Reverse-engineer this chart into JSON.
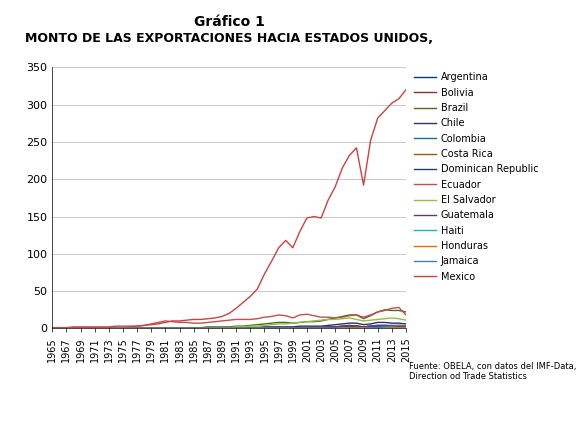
{
  "title1": "Gráfico 1",
  "title2": "MONTO DE LAS EXPORTACIONES HACIA ESTADOS UNIDOS,",
  "footnote": "Fuente: OBELA, con datos del IMF-Data,\nDirection od Trade Statistics",
  "years": [
    1965,
    1966,
    1967,
    1968,
    1969,
    1970,
    1971,
    1972,
    1973,
    1974,
    1975,
    1976,
    1977,
    1978,
    1979,
    1980,
    1981,
    1982,
    1983,
    1984,
    1985,
    1986,
    1987,
    1988,
    1989,
    1990,
    1991,
    1992,
    1993,
    1994,
    1995,
    1996,
    1997,
    1998,
    1999,
    2000,
    2001,
    2002,
    2003,
    2004,
    2005,
    2006,
    2007,
    2008,
    2009,
    2010,
    2011,
    2012,
    2013,
    2014,
    2015
  ],
  "series": {
    "Argentina": [
      0,
      0,
      0,
      0,
      0,
      0,
      0,
      0,
      0,
      0,
      0,
      0,
      0,
      0,
      0,
      0,
      0,
      0,
      0,
      0,
      0,
      0,
      0,
      0,
      0,
      0,
      0,
      1,
      1,
      1,
      1,
      1,
      1,
      1,
      1,
      1,
      1,
      1,
      1,
      2,
      2,
      3,
      4,
      3,
      1,
      2,
      3,
      3,
      3,
      3,
      3
    ],
    "Bolivia": [
      0,
      0,
      0,
      0,
      0,
      0,
      0,
      0,
      0,
      0,
      0,
      0,
      0,
      0,
      0,
      0,
      0,
      0,
      0,
      0,
      0,
      0,
      0,
      0,
      0,
      0,
      0,
      0,
      0,
      0,
      1,
      1,
      1,
      1,
      1,
      1,
      1,
      1,
      1,
      1,
      2,
      2,
      2,
      3,
      2,
      3,
      4,
      4,
      3,
      3,
      2
    ],
    "Brazil": [
      0,
      0,
      0,
      0,
      0,
      0,
      0,
      0,
      0,
      0,
      0,
      0,
      0,
      0,
      1,
      1,
      1,
      1,
      1,
      1,
      1,
      1,
      2,
      2,
      2,
      2,
      3,
      3,
      4,
      5,
      6,
      7,
      8,
      8,
      7,
      8,
      9,
      9,
      10,
      12,
      14,
      16,
      18,
      18,
      13,
      17,
      22,
      25,
      24,
      24,
      22
    ],
    "Chile": [
      0,
      0,
      0,
      0,
      0,
      0,
      0,
      0,
      0,
      0,
      0,
      0,
      0,
      0,
      0,
      0,
      0,
      0,
      0,
      0,
      0,
      0,
      0,
      0,
      0,
      0,
      1,
      1,
      1,
      1,
      2,
      2,
      2,
      2,
      2,
      3,
      3,
      3,
      3,
      4,
      5,
      6,
      7,
      7,
      5,
      6,
      8,
      8,
      7,
      7,
      6
    ],
    "Colombia": [
      0,
      0,
      0,
      0,
      0,
      0,
      0,
      0,
      0,
      0,
      0,
      0,
      0,
      0,
      0,
      0,
      0,
      0,
      0,
      0,
      0,
      0,
      0,
      0,
      0,
      0,
      0,
      0,
      0,
      1,
      1,
      1,
      1,
      1,
      1,
      1,
      1,
      1,
      1,
      2,
      2,
      2,
      3,
      3,
      2,
      3,
      4,
      4,
      4,
      4,
      3
    ],
    "Costa Rica": [
      0,
      0,
      0,
      0,
      0,
      0,
      0,
      0,
      0,
      0,
      0,
      0,
      0,
      0,
      0,
      0,
      0,
      0,
      0,
      0,
      0,
      0,
      0,
      0,
      0,
      0,
      0,
      0,
      0,
      0,
      0,
      0,
      0,
      0,
      1,
      1,
      1,
      1,
      1,
      1,
      1,
      1,
      1,
      1,
      1,
      1,
      1,
      1,
      1,
      1,
      1
    ],
    "Dominican Republic": [
      0,
      0,
      0,
      0,
      0,
      0,
      0,
      0,
      0,
      0,
      0,
      0,
      0,
      0,
      0,
      0,
      0,
      0,
      0,
      0,
      0,
      0,
      0,
      0,
      0,
      0,
      0,
      0,
      0,
      0,
      0,
      0,
      0,
      0,
      1,
      1,
      1,
      1,
      1,
      1,
      1,
      1,
      1,
      1,
      1,
      1,
      1,
      1,
      1,
      1,
      1
    ],
    "Ecuador": [
      0,
      0,
      0,
      0,
      0,
      0,
      0,
      0,
      0,
      0,
      1,
      2,
      3,
      4,
      6,
      8,
      10,
      9,
      8,
      8,
      7,
      7,
      8,
      9,
      10,
      11,
      12,
      12,
      12,
      13,
      15,
      16,
      18,
      17,
      14,
      18,
      19,
      17,
      15,
      15,
      14,
      15,
      17,
      18,
      15,
      18,
      22,
      24,
      27,
      28,
      18
    ],
    "El Salvador": [
      0,
      0,
      0,
      0,
      0,
      0,
      0,
      0,
      0,
      0,
      0,
      0,
      0,
      0,
      0,
      0,
      0,
      0,
      0,
      0,
      0,
      0,
      1,
      1,
      1,
      1,
      2,
      2,
      3,
      3,
      4,
      5,
      6,
      6,
      7,
      8,
      9,
      10,
      11,
      12,
      12,
      13,
      14,
      12,
      10,
      11,
      12,
      13,
      14,
      13,
      11
    ],
    "Guatemala": [
      0,
      0,
      0,
      0,
      0,
      0,
      0,
      0,
      0,
      0,
      0,
      0,
      0,
      0,
      0,
      0,
      0,
      0,
      0,
      0,
      0,
      0,
      0,
      0,
      0,
      0,
      0,
      0,
      0,
      0,
      1,
      1,
      1,
      1,
      1,
      1,
      1,
      1,
      1,
      2,
      2,
      3,
      3,
      3,
      2,
      3,
      3,
      3,
      3,
      3,
      3
    ],
    "Haiti": [
      0,
      0,
      0,
      0,
      0,
      0,
      0,
      0,
      0,
      0,
      0,
      0,
      0,
      0,
      0,
      0,
      0,
      0,
      0,
      0,
      0,
      0,
      0,
      0,
      0,
      0,
      0,
      0,
      0,
      0,
      0,
      0,
      0,
      0,
      0,
      0,
      0,
      0,
      0,
      0,
      0,
      0,
      0,
      0,
      0,
      0,
      0,
      1,
      1,
      1,
      1
    ],
    "Honduras": [
      0,
      0,
      0,
      0,
      0,
      0,
      0,
      0,
      0,
      0,
      0,
      0,
      0,
      0,
      0,
      0,
      0,
      0,
      0,
      0,
      0,
      0,
      0,
      0,
      0,
      0,
      0,
      0,
      0,
      0,
      0,
      0,
      0,
      0,
      0,
      0,
      0,
      0,
      0,
      0,
      0,
      1,
      1,
      1,
      1,
      1,
      1,
      1,
      1,
      1,
      1
    ],
    "Jamaica": [
      0,
      0,
      0,
      0,
      0,
      0,
      0,
      0,
      0,
      0,
      0,
      0,
      0,
      0,
      0,
      0,
      0,
      0,
      0,
      0,
      0,
      0,
      0,
      0,
      0,
      0,
      0,
      0,
      0,
      0,
      0,
      0,
      0,
      0,
      0,
      0,
      0,
      0,
      0,
      0,
      0,
      0,
      0,
      0,
      0,
      1,
      1,
      2,
      3,
      4,
      4
    ],
    "Mexico": [
      1,
      1,
      1,
      2,
      2,
      2,
      2,
      2,
      2,
      3,
      3,
      3,
      3,
      4,
      5,
      6,
      8,
      10,
      10,
      11,
      12,
      12,
      13,
      14,
      16,
      20,
      27,
      35,
      43,
      53,
      73,
      90,
      108,
      118,
      108,
      130,
      148,
      150,
      148,
      172,
      190,
      215,
      232,
      242,
      192,
      252,
      282,
      292,
      302,
      308,
      320
    ]
  },
  "colors": {
    "Argentina": "#003f87",
    "Bolivia": "#833232",
    "Brazil": "#4c6b2a",
    "Chile": "#3d2a6b",
    "Colombia": "#1e6b8c",
    "Costa Rica": "#9c5c00",
    "Dominican Republic": "#1a3f7a",
    "Ecuador": "#c0504d",
    "El Salvador": "#92c040",
    "Guatemala": "#5a3a7a",
    "Haiti": "#1fafc0",
    "Honduras": "#e07000",
    "Jamaica": "#3a80c0",
    "Mexico": "#d04040"
  },
  "ylim": [
    0,
    350
  ],
  "yticks": [
    0,
    50,
    100,
    150,
    200,
    250,
    300,
    350
  ],
  "xlim_start": 1965,
  "xlim_end": 2015,
  "plot_bg": "#ffffff",
  "fig_bg": "#ffffff",
  "grid_color": "#c0c0c0",
  "title1_fontsize": 10,
  "title2_fontsize": 9,
  "tick_fontsize": 7,
  "legend_fontsize": 7
}
